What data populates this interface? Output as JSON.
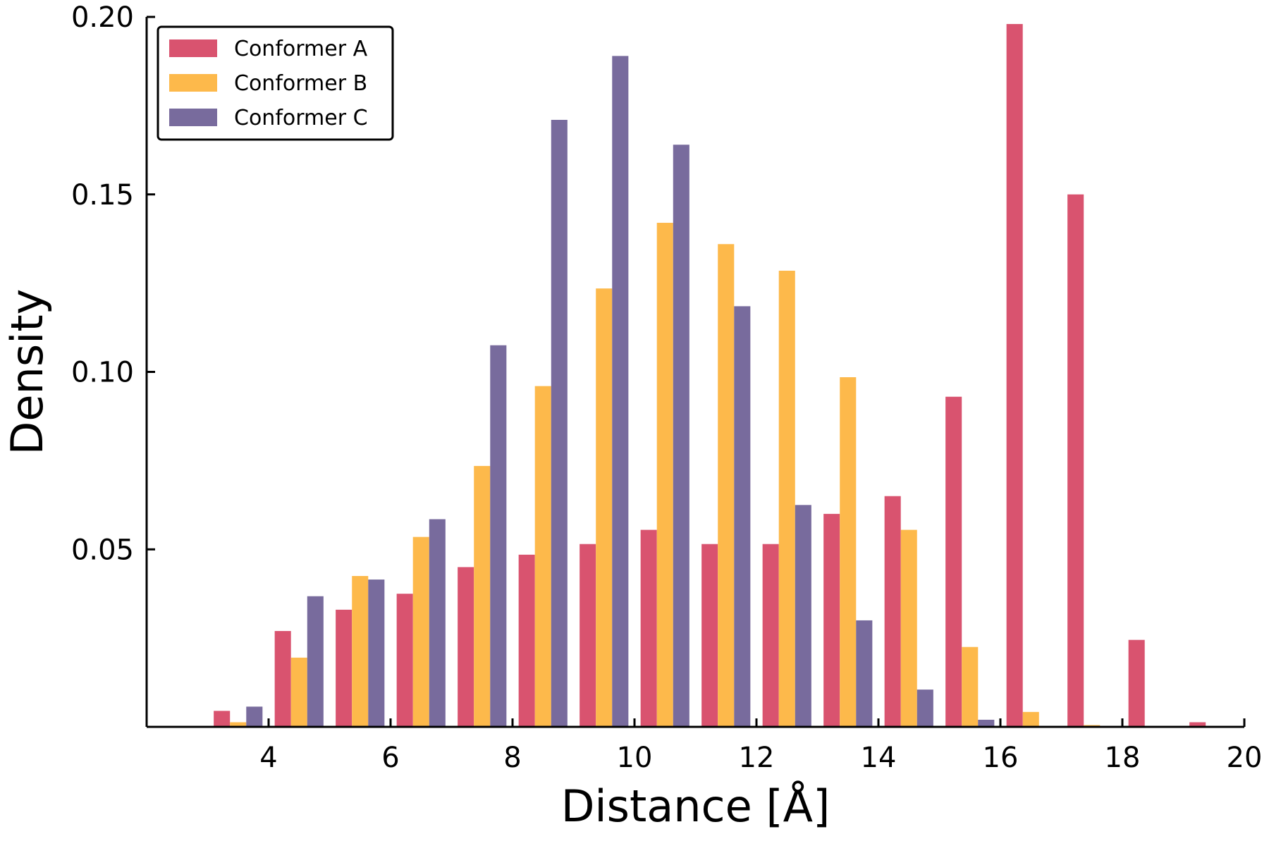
{
  "chart_data": {
    "type": "bar",
    "xlabel": "Distance [Å]",
    "ylabel": "Density",
    "xlim": [
      2,
      20
    ],
    "ylim": [
      0,
      0.2
    ],
    "xticks": [
      "4",
      "6",
      "8",
      "10",
      "12",
      "14",
      "16",
      "18",
      "20"
    ],
    "yticks": [
      "0.05",
      "0.10",
      "0.15",
      "0.20"
    ],
    "bin_centers": [
      3.5,
      4.5,
      5.5,
      6.5,
      7.5,
      8.5,
      9.5,
      10.5,
      11.5,
      12.5,
      13.5,
      14.5,
      15.5,
      16.5,
      17.5,
      18.5,
      19.5
    ],
    "legend_position": "top-left",
    "grid": false,
    "series": [
      {
        "name": "Conformer A",
        "color": "#d9536f",
        "values": [
          0.0045,
          0.027,
          0.033,
          0.0375,
          0.045,
          0.0485,
          0.0515,
          0.0555,
          0.0515,
          0.0515,
          0.06,
          0.065,
          0.093,
          0.198,
          0.15,
          0.0245,
          0.0013
        ]
      },
      {
        "name": "Conformer B",
        "color": "#fdb94b",
        "values": [
          0.0013,
          0.0195,
          0.0425,
          0.0535,
          0.0735,
          0.096,
          0.1235,
          0.142,
          0.136,
          0.1285,
          0.0985,
          0.0555,
          0.0225,
          0.0042,
          0.0005,
          0,
          0
        ]
      },
      {
        "name": "Conformer C",
        "color": "#786b9d",
        "values": [
          0.0057,
          0.0368,
          0.0415,
          0.0585,
          0.1075,
          0.171,
          0.189,
          0.164,
          0.1185,
          0.0625,
          0.03,
          0.0105,
          0.002,
          0.0002,
          0,
          0,
          0
        ]
      }
    ]
  }
}
